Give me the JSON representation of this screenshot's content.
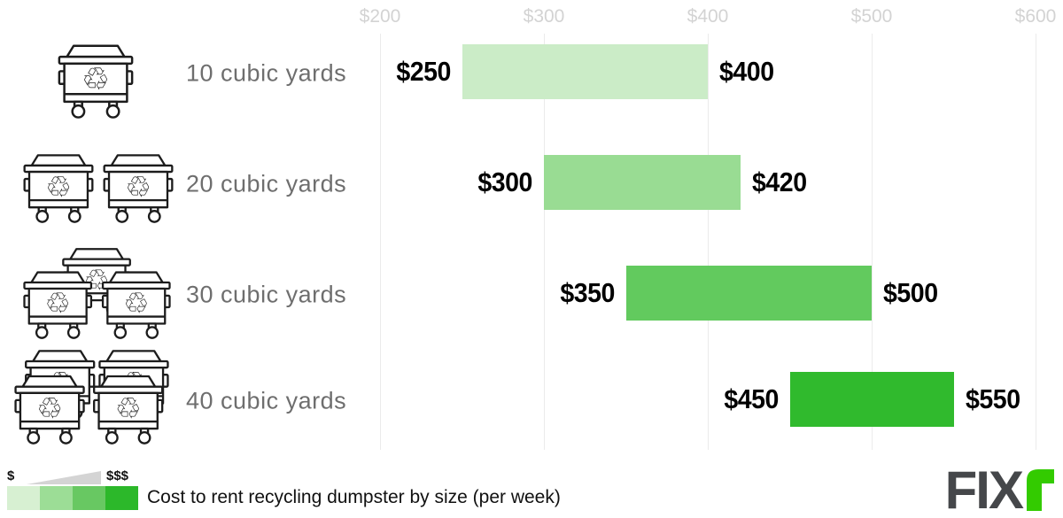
{
  "chart_data": {
    "type": "bar",
    "subtype": "horizontal-range",
    "title": "Cost to rent recycling dumpster by size (per week)",
    "axis": {
      "min": 200,
      "max": 600,
      "ticks": [
        {
          "value": 200,
          "label": "$200"
        },
        {
          "value": 300,
          "label": "$300"
        },
        {
          "value": 400,
          "label": "$400"
        },
        {
          "value": 500,
          "label": "$500"
        },
        {
          "value": 600,
          "label": "$600"
        }
      ],
      "position": "top",
      "grid": true
    },
    "rows": [
      {
        "category": "10 cubic yards",
        "icon_count": 1,
        "min": 250,
        "max": 400,
        "min_label": "$250",
        "max_label": "$400",
        "bar_color": "#cbecc7"
      },
      {
        "category": "20 cubic yards",
        "icon_count": 2,
        "min": 300,
        "max": 420,
        "min_label": "$300",
        "max_label": "$420",
        "bar_color": "#99dc93"
      },
      {
        "category": "30 cubic yards",
        "icon_count": 3,
        "min": 350,
        "max": 500,
        "min_label": "$350",
        "max_label": "$500",
        "bar_color": "#62ca5e"
      },
      {
        "category": "40 cubic yards",
        "icon_count": 4,
        "min": 450,
        "max": 550,
        "min_label": "$450",
        "max_label": "$550",
        "bar_color": "#30ba2d"
      }
    ],
    "legend": {
      "low_label": "$",
      "high_label": "$$$",
      "colors": [
        "#d7f0d2",
        "#9cdd96",
        "#68c862",
        "#2cb82a"
      ],
      "wedge_color": "#d4d4d4",
      "position": "bottom-left"
    }
  },
  "branding": {
    "logo_text": "FIX",
    "logo_accent_letter": "r",
    "logo_text_color": "#45474a",
    "logo_accent_color": "#33cb00"
  },
  "icons": {
    "dumpster": "recycling-dumpster-icon",
    "recycle_glyph": "♲"
  },
  "colors": {
    "tick_label": "#d3d3d3",
    "gridline": "#ebebeb",
    "row_label": "#6e6e6e",
    "value_label": "#000000"
  }
}
